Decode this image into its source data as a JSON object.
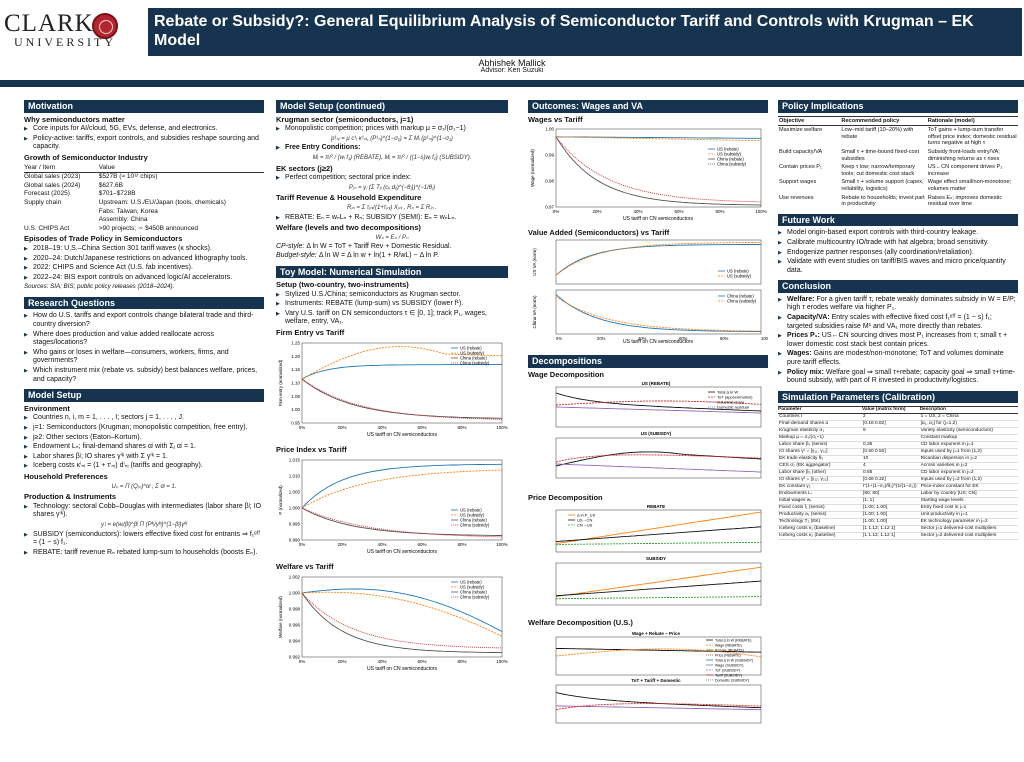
{
  "header": {
    "logo_word": "CLARK",
    "logo_sub": "UNIVERSITY",
    "title": "Rebate or Subsidy?: General Equilibrium Analysis of Semiconductor Tariff and Controls with Krugman – EK Model",
    "author": "Abhishek Mallick",
    "advisor": "Advisor: Ken Suzuki"
  },
  "motivation": {
    "head": "Motivation",
    "why_head": "Why semiconductors matter",
    "why": [
      "Core inputs for AI/cloud, 5G, EVs, defense, and electronics.",
      "Policy-active: tariffs, export controls, and subsidies reshape sourcing and capacity."
    ],
    "growth_head": "Growth of Semiconductor Industry",
    "table_head": [
      "Year / Item",
      "Value"
    ],
    "table": [
      [
        "Global sales (2023)",
        "$527B (≈ 10¹² chips)"
      ],
      [
        "Global sales (2024)",
        "$627.6B"
      ],
      [
        "Forecast (2025)",
        "$701–$728B"
      ],
      [
        "Supply chain",
        "Upstream: U.S./EU/Japan (tools, chemicals)"
      ],
      [
        "",
        "Fabs: Taiwan, Korea"
      ],
      [
        "",
        "Assembly: China"
      ],
      [
        "U.S. CHIPS Act",
        ">90 projects; ∼ $450B announced"
      ]
    ],
    "episodes_head": "Episodes of Trade Policy in Semiconductors",
    "episodes": [
      "2018–19: U.S.–China Section 301 tariff waves (κ shocks).",
      "2020–24: Dutch/Japanese restrictions on advanced lithography tools.",
      "2022: CHIPS and Science Act (U.S. fab incentives).",
      "2022–24: BIS export controls on advanced logic/AI accelerators."
    ],
    "sources": "Sources: SIA; BIS; public policy releases (2018–2024)."
  },
  "research": {
    "head": "Research Questions",
    "items": [
      "How do U.S. tariffs and export controls change bilateral trade and third-country diversion?",
      "Where does production and value added reallocate across stages/locations?",
      "Who gains or loses in welfare—consumers, workers, firms, and governments?",
      "Which instrument mix (rebate vs. subsidy) best balances welfare, prices, and capacity?"
    ]
  },
  "model_setup": {
    "head": "Model Setup",
    "env_head": "Environment",
    "env": [
      "Countries n, i, m = 1, . . . , I; sectors j = 1, . . . , J.",
      "j=1: Semiconductors (Krugman; monopolistic competition, free entry).",
      "j≥2: Other sectors (Eaton–Kortum).",
      "Endowment Lₙ; final-demand shares αʲ with Σⱼ αʲ = 1.",
      "Labor shares βʲ; IO shares γⁱᵏ with Σ γⁱᵏ = 1.",
      "Iceberg costs κⁱₙᵢ = (1 + τⁱₙᵢ) dⁱₙᵢ (tariffs and geography)."
    ],
    "hh_head": "Household Preferences",
    "hh_eq": "Uₙ = Π (Qⱼₙ)^αʲ ,  Σ αʲ = 1.",
    "prod_head": "Production & Instruments",
    "prod": [
      "Technology: sectoral Cobb–Douglas with intermediates (labor share βʲ; IO shares γⁱᵏ).",
      "SUBSIDY (semiconductors): lowers effective fixed cost for entrants ⇒ f₁ᵉᶠᶠ = (1 − s) f₁.",
      "REBATE: tariff revenue Rₙ rebated lump-sum to households (boosts Eₙ)."
    ],
    "prod_eq": "yⁱᵢ = e(wᵢ/βʲ)^βʲ Π (Pᵏᵢ/γᵏʲ)^(1−βʲ)γᵏʲ"
  },
  "model_cont": {
    "head": "Model Setup (continued)",
    "krug_head": "Krugman sector (semiconductors, j=1)",
    "krug": [
      "Monopolistic competition; prices with markup μ = σ₁/(σ₁−1)"
    ],
    "krug_eq": "p¹ₙᵢ = μ c¹ᵢ κ¹ₙᵢ,   (P¹ₙ)^(1−σ₁) = Σ Mᵢ (p¹ₙᵢ)^(1−σ₁)",
    "entry": "Free Entry Conditions:",
    "entry_eq": "Mᵢ = πᵢᴿ / (wᵢ f₁)  (REBATE),   Mᵢ = πᵢᴿ / ((1−s)wᵢ f₁)  (SUBSIDY).",
    "ek_head": "EK sectors (j≥2)",
    "ek": [
      "Perfect competition; sectoral price index:"
    ],
    "ek_eq": "Pⱼₙ = γⱼ (Σ Tᵢⱼ (cᵢⱼ dᵢⱼ)^(−θⱼ))^(−1/θⱼ)",
    "tariff_head": "Tariff Revenue & Household Expenditure",
    "tariff_eq": "Rⱼₙ = Σ τⱼₙᵢ/(1+τⱼₙᵢ) Xⱼₙᵢ ,   Rₙ = Σ Rⱼₙ .",
    "tariff_items": [
      "REBATE: Eₙ = wₙLₙ + Rₙ;  SUBSIDY (SEMI): Eₙ = wₙLₙ."
    ],
    "welfare_head": "Welfare (levels and two decompositions)",
    "welfare_eq": "Wₙ = Eₙ / Pₙ",
    "cp_label": "CP-style:",
    "cp_eq": "Δ ln W = ToT + Tariff Rev + Domestic Residual.",
    "bud_label": "Budget-style:",
    "bud_eq": "Δ ln W = Δ ln w + ln(1 + R/wL) − Δ ln P."
  },
  "toy": {
    "head": "Toy Model: Numerical Simulation",
    "setup_head": "Setup (two-country, two-instruments)",
    "items": [
      "Stylized U.S./China; semiconductors as Krugman sector.",
      "Instruments: REBATE (lump-sum) vs SUBSIDY (lower f¹).",
      "Vary U.S. tariff on CN semiconductors τ ∈ [0, 1]; track P₁, wages, welfare, entry, VA₁."
    ]
  },
  "charts_c2": {
    "entry": {
      "title": "Firm Entry vs Tariff",
      "ylabel": "Firm entry (normalized)",
      "xlabel": "US tariff on CN semiconductors",
      "yticks": [
        "0.95",
        "1.00",
        "1.05",
        "1.10",
        "1.15",
        "1.20",
        "1.25"
      ],
      "xticks": [
        "0%",
        "20%",
        "40%",
        "60%",
        "80%",
        "100%"
      ],
      "legend": [
        "US (rebate)",
        "US (subsidy)",
        "China (rebate)",
        "China (subsidy)"
      ]
    },
    "price": {
      "title": "Price Index vs Tariff",
      "ylabel": "P (normalized)",
      "xlabel": "US tariff on CN semiconductors",
      "yticks": [
        "0.990",
        "0.995",
        "1.000",
        "1.005",
        "1.010",
        "1.015"
      ],
      "xticks": [
        "0%",
        "20%",
        "40%",
        "60%",
        "80%",
        "100%"
      ],
      "legend": [
        "US (rebate)",
        "US (subsidy)",
        "China (rebate)",
        "China (subsidy)"
      ]
    },
    "welfare": {
      "title": "Welfare vs Tariff",
      "ylabel": "Welfare (normalized)",
      "xlabel": "US tariff on CN semiconductors",
      "yticks": [
        "0.992",
        "0.994",
        "0.996",
        "0.998",
        "1.000",
        "1.002"
      ],
      "xticks": [
        "0%",
        "20%",
        "40%",
        "60%",
        "80%",
        "100%"
      ],
      "legend": [
        "US (rebate)",
        "US (subsidy)",
        "China (rebate)",
        "China (subsidy)"
      ]
    }
  },
  "outcomes": {
    "head": "Outcomes: Wages and VA",
    "wages": {
      "title": "Wages vs Tariff",
      "ylabel": "Wage (normalized)",
      "xlabel": "US tariff on CN semiconductors",
      "yticks": [
        "0.97",
        "0.98",
        "0.99",
        "1.00"
      ],
      "xticks": [
        "0%",
        "20%",
        "40%",
        "60%",
        "80%",
        "100%"
      ],
      "legend": [
        "US (rebate)",
        "US (subsidy)",
        "China (rebate)",
        "China (subsidy)"
      ]
    },
    "va": {
      "title": "Value Added (Semiconductors) vs Tariff",
      "ylabel1": "US VA (norm)",
      "ylabel2": "China VA (norm)",
      "xlabel": "US tariff on CN semiconductors",
      "legend1": [
        "US (rebate)",
        "US (subsidy)"
      ],
      "legend2": [
        "China (rebate)",
        "China (subsidy)"
      ],
      "xticks": [
        "0%",
        "20%",
        "40%",
        "60%",
        "80%",
        "100%"
      ]
    }
  },
  "decomp": {
    "head": "Decompositions",
    "wage": {
      "title": "Wage Decomposition",
      "sub1": "US (REBATE)",
      "sub2": "US (SUBSIDY)",
      "legend": [
        "Total Δ ln W",
        "ToT (approximation)",
        "Industrial share",
        "Domestic residual"
      ]
    },
    "price": {
      "title": "Price Decomposition",
      "sub1": "REBATE",
      "sub2": "SUBSIDY",
      "legend": [
        "Δ ln P_US",
        "US→CN",
        "CN→US"
      ]
    },
    "welfare_us": {
      "title": "Welfare Decomposition (U.S.)",
      "sub1": "Wage + Rebate − Price",
      "sub2": "ToT + Tariff + Domestic",
      "legend": [
        "Total Δ ln W (REBATE)",
        "Wage (REBATE)",
        "Rebate (REBATE)",
        "Price (REBATE)",
        "Total Δ ln W (SUBSIDY)",
        "Wage (SUBSIDY)",
        "ToT (SUBSIDY)",
        "Tariff (SUBSIDY)",
        "Domestic (SUBSIDY)"
      ]
    }
  },
  "policy": {
    "head": "Policy Implications",
    "cols": [
      "Objective",
      "Recommended policy",
      "Rationale (model)"
    ],
    "rows": [
      [
        "Maximize welfare",
        "Low–mid tariff (10–20%) with rebate",
        "ToT gains + lump-sum transfer offset price index; domestic residual turns negative at high τ"
      ],
      [
        "Build capacity/VA",
        "Small τ + time-bound fixed-cost subsidies",
        "Subsidy front-loads entry/VA; diminishing returns as τ rises"
      ],
      [
        "Contain prices P₁",
        "Keep τ low; narrow/temporary tools; cut domestic cost stack",
        "US←CN component drives P₁ increase"
      ],
      [
        "Support wages",
        "Small τ + volume support (capex, reliability, logistics)",
        "Wage effect small/non-monotone; volumes matter"
      ],
      [
        "Use revenues",
        "Rebate to households; invest part in productivity",
        "Raises Eₙ; improves domestic residual over time"
      ]
    ]
  },
  "future": {
    "head": "Future Work",
    "items": [
      "Model origin-based export controls with third-country leakage.",
      "Calibrate multicountry IO/trade with hat algebra; broad sensitivity.",
      "Endogenize partner responses (ally coordination/retaliation).",
      "Validate with event studies on tariff/BIS waves and micro price/quantity data."
    ]
  },
  "conclusion": {
    "head": "Conclusion",
    "items": [
      {
        "b": "Welfare:",
        "t": " For a given tariff τ, rebate weakly dominates subsidy in W = E/P; high τ erodes welfare via higher P₁."
      },
      {
        "b": "Capacity/VA:",
        "t": " Entry scales with effective fixed cost f₁ᵉᶠᶠ = (1 − s) f₁; targeted subsidies raise M¹ and VA₁ more directly than rebates."
      },
      {
        "b": "Prices P₁:",
        "t": " US←CN sourcing drives most P₁ increases from τ; small τ + lower domestic cost stack best contain prices."
      },
      {
        "b": "Wages:",
        "t": " Gains are modest/non-monotone; ToT and volumes dominate pure tariff effects."
      },
      {
        "b": "Policy mix:",
        "t": " Welfare goal ⇒ small τ+rebate; capacity goal ⇒ small τ+time-bound subsidy, with part of R invested in productivity/logistics."
      }
    ]
  },
  "sim": {
    "head": "Simulation Parameters (Calibration)",
    "cols": [
      "Parameter",
      "Value (matrix form)",
      "Description"
    ],
    "rows": [
      [
        "Countries I",
        "2",
        "1 = US, 2 = China"
      ],
      [
        "Final-demand shares α",
        "[0.18 0.82]",
        "[α₁, α₂] for (j=1,2)"
      ],
      [
        "Krugman elasticity σ₁",
        "8",
        "Variety elasticity (semiconductors)"
      ],
      [
        "Markup μ = σ₁/(σ₁−1)",
        "",
        "Constant markup"
      ],
      [
        "Labor share β₁ (semis)",
        "0.35",
        "CD labor exponent in j=1"
      ],
      [
        "IO shares γ¹ = [γ₁₁, γ₂₁]",
        "[0.50 0.50]",
        "Inputs used by j=1 from (1,2)"
      ],
      [
        "EK trade elasticity θ₂",
        "10",
        "Ricardian dispersion in j=2"
      ],
      [
        "CES σ₂ (EK aggregator)",
        "4",
        "Across varieties in j=2"
      ],
      [
        "Labor share β₂ (other)",
        "0.55",
        "CD labor exponent in j=2"
      ],
      [
        "IO shares γ² = [γ₁₂, γ₂₂]",
        "[0.68 0.32]",
        "Inputs used by j=2 from (1,2)"
      ],
      [
        "EK constant γ₂",
        "Γ(1+(1−σ₂)/θ₂)^(1/(1−σ₂))",
        "Price-index constant for EK"
      ],
      [
        "Endowments Lᵢ",
        "[80; 80]",
        "Labor by country [US; CN]"
      ],
      [
        "Initial wages wᵢ",
        "[1; 1]",
        "Starting wage levels"
      ],
      [
        "Fixed costs f₁ (semis)",
        "[1.00; 1.00]",
        "Entry fixed cost in j=1"
      ],
      [
        "Productivity a₁ (semis)",
        "[1.00; 1.00]",
        "Unit productivity in j=1"
      ],
      [
        "Technology T₂ (EK)",
        "[1.00; 1.00]",
        "EK technology parameter in j=2"
      ],
      [
        "Iceberg costs κ₁ (baseline)",
        "[1 1.12; 1.12 1]",
        "Sector j=1 delivered-cost multipliers"
      ],
      [
        "Iceberg costs κ₂ (baseline)",
        "[1 1.12; 1.12 1]",
        "Sector j=2 delivered-cost multipliers"
      ]
    ]
  },
  "colors": {
    "navy": "#16344f",
    "blue": "#1f77b4",
    "orange": "#ff7f0e",
    "gray": "#7f7f7f",
    "purple": "#9467bd",
    "red": "#d62728",
    "green": "#2ca02c"
  }
}
